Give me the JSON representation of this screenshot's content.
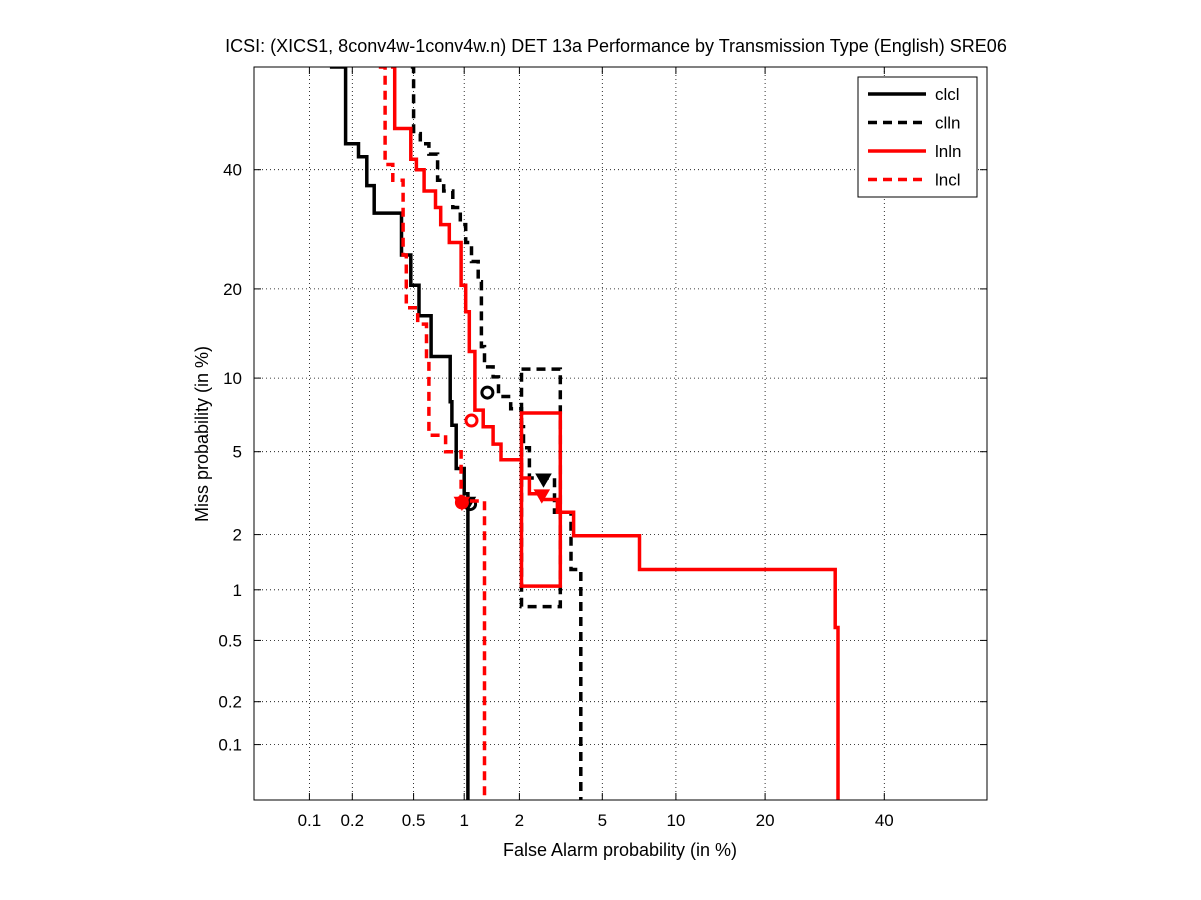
{
  "chart_data": {
    "type": "line",
    "subtype": "DET curve",
    "title": "ICSI: (XICS1, 8conv4w-1conv4w.n) DET 13a Performance by Transmission Type (English) SRE06",
    "xlabel": "False Alarm probability (in %)",
    "ylabel": "Miss probability (in %)",
    "x_scale": "normal-deviate",
    "y_scale": "normal-deviate",
    "xlim": [
      0.0385,
      60
    ],
    "ylim": [
      0.0385,
      60
    ],
    "x_ticks": [
      0.1,
      0.2,
      0.5,
      1,
      2,
      5,
      10,
      20,
      40
    ],
    "x_tick_labels": [
      "0.1",
      "0.2",
      "0.5",
      "1",
      "2",
      "5",
      "10",
      "20",
      "40"
    ],
    "y_ticks": [
      0.1,
      0.2,
      0.5,
      1,
      2,
      5,
      10,
      20,
      40
    ],
    "y_tick_labels": [
      "0.1",
      "0.2",
      "0.5",
      "1",
      "2",
      "5",
      "10",
      "20",
      "40"
    ],
    "grid": true,
    "legend_position": "top-right",
    "series": [
      {
        "name": "clcl",
        "color": "#000000",
        "dash": "solid",
        "steps": [
          [
            0.14,
            60
          ],
          [
            0.18,
            60
          ],
          [
            0.18,
            45
          ],
          [
            0.22,
            45
          ],
          [
            0.22,
            42.5
          ],
          [
            0.25,
            42.5
          ],
          [
            0.25,
            37
          ],
          [
            0.28,
            37
          ],
          [
            0.28,
            32
          ],
          [
            0.42,
            32
          ],
          [
            0.42,
            25
          ],
          [
            0.48,
            25
          ],
          [
            0.48,
            20.5
          ],
          [
            0.54,
            20.5
          ],
          [
            0.54,
            16.5
          ],
          [
            0.64,
            16.5
          ],
          [
            0.64,
            12
          ],
          [
            0.83,
            12
          ],
          [
            0.83,
            8.1
          ],
          [
            0.85,
            8.1
          ],
          [
            0.85,
            6.5
          ],
          [
            0.9,
            6.5
          ],
          [
            0.9,
            4.2
          ],
          [
            1.0,
            4.2
          ],
          [
            1.0,
            3.2
          ],
          [
            1.05,
            3.2
          ],
          [
            1.05,
            0.0385
          ]
        ],
        "act_point": [
          1.08,
          2.85
        ],
        "min_point": [
          1.05,
          2.9
        ]
      },
      {
        "name": "clln",
        "color": "#000000",
        "dash": "dashed",
        "steps": [
          [
            0.48,
            60
          ],
          [
            0.5,
            60
          ],
          [
            0.5,
            47
          ],
          [
            0.55,
            47
          ],
          [
            0.55,
            45
          ],
          [
            0.62,
            45
          ],
          [
            0.62,
            43
          ],
          [
            0.7,
            43
          ],
          [
            0.7,
            38
          ],
          [
            0.76,
            38
          ],
          [
            0.76,
            36
          ],
          [
            0.86,
            36
          ],
          [
            0.86,
            33
          ],
          [
            0.95,
            33
          ],
          [
            0.95,
            30
          ],
          [
            1.02,
            30
          ],
          [
            1.02,
            27
          ],
          [
            1.1,
            27
          ],
          [
            1.1,
            24
          ],
          [
            1.2,
            24
          ],
          [
            1.2,
            21
          ],
          [
            1.25,
            21
          ],
          [
            1.25,
            13
          ],
          [
            1.3,
            13
          ],
          [
            1.3,
            11
          ],
          [
            1.45,
            11
          ],
          [
            1.45,
            10.1
          ],
          [
            1.55,
            10.1
          ],
          [
            1.55,
            8.5
          ],
          [
            1.8,
            8.5
          ],
          [
            1.8,
            7.6
          ],
          [
            2.05,
            7.6
          ],
          [
            2.05,
            6.4
          ],
          [
            2.1,
            6.4
          ],
          [
            2.1,
            5.2
          ],
          [
            2.25,
            5.2
          ],
          [
            2.25,
            3.8
          ],
          [
            3.0,
            3.8
          ],
          [
            3.0,
            2.6
          ],
          [
            3.6,
            2.6
          ],
          [
            3.6,
            1.3
          ],
          [
            4.0,
            1.3
          ],
          [
            4.0,
            0.0385
          ]
        ],
        "act_point": [
          1.35,
          8.8
        ],
        "min_point": [
          2.65,
          3.75
        ],
        "confidence_box": {
          "x": [
            2.05,
            3.2
          ],
          "y": [
            0.8,
            10.8
          ]
        }
      },
      {
        "name": "lnln",
        "color": "#ff0000",
        "dash": "solid",
        "steps": [
          [
            0.36,
            60
          ],
          [
            0.38,
            60
          ],
          [
            0.38,
            48
          ],
          [
            0.48,
            48
          ],
          [
            0.48,
            42
          ],
          [
            0.52,
            42
          ],
          [
            0.52,
            40
          ],
          [
            0.58,
            40
          ],
          [
            0.58,
            36
          ],
          [
            0.68,
            36
          ],
          [
            0.68,
            33
          ],
          [
            0.73,
            33
          ],
          [
            0.73,
            30
          ],
          [
            0.82,
            30
          ],
          [
            0.82,
            27
          ],
          [
            0.96,
            27
          ],
          [
            0.96,
            20.5
          ],
          [
            1.02,
            20.5
          ],
          [
            1.02,
            17
          ],
          [
            1.07,
            17
          ],
          [
            1.07,
            12.5
          ],
          [
            1.15,
            12.5
          ],
          [
            1.15,
            7.5
          ],
          [
            1.28,
            7.5
          ],
          [
            1.28,
            6.4
          ],
          [
            1.45,
            6.4
          ],
          [
            1.45,
            5.4
          ],
          [
            1.6,
            5.4
          ],
          [
            1.6,
            4.6
          ],
          [
            2.05,
            4.6
          ],
          [
            2.05,
            3.8
          ],
          [
            2.25,
            3.8
          ],
          [
            2.25,
            3.2
          ],
          [
            2.6,
            3.2
          ],
          [
            2.6,
            3.0
          ],
          [
            3.1,
            3.0
          ],
          [
            3.1,
            2.6
          ],
          [
            3.7,
            2.6
          ],
          [
            3.7,
            1.97
          ],
          [
            7.2,
            1.97
          ],
          [
            7.2,
            1.3
          ],
          [
            31,
            1.3
          ],
          [
            31,
            0.6
          ],
          [
            31.5,
            0.6
          ],
          [
            31.5,
            0.0385
          ]
        ],
        "act_point": [
          1.1,
          6.8
        ],
        "min_point": [
          2.6,
          3.15
        ],
        "confidence_box": {
          "x": [
            2.05,
            3.2
          ],
          "y": [
            1.05,
            7.3
          ]
        }
      },
      {
        "name": "lncl",
        "color": "#ff0000",
        "dash": "dashed",
        "steps": [
          [
            0.3,
            60
          ],
          [
            0.33,
            60
          ],
          [
            0.33,
            41
          ],
          [
            0.37,
            41
          ],
          [
            0.37,
            38
          ],
          [
            0.43,
            38
          ],
          [
            0.43,
            25
          ],
          [
            0.45,
            25
          ],
          [
            0.45,
            17.5
          ],
          [
            0.53,
            17.5
          ],
          [
            0.53,
            15.5
          ],
          [
            0.6,
            15.5
          ],
          [
            0.6,
            11.8
          ],
          [
            0.62,
            11.8
          ],
          [
            0.62,
            5.9
          ],
          [
            0.78,
            5.9
          ],
          [
            0.78,
            5.0
          ],
          [
            0.96,
            5.0
          ],
          [
            0.96,
            2.95
          ],
          [
            1.3,
            2.95
          ],
          [
            1.3,
            0.0385
          ]
        ],
        "act_point": [
          0.97,
          2.9
        ],
        "min_point": [
          0.97,
          2.9
        ]
      }
    ]
  }
}
